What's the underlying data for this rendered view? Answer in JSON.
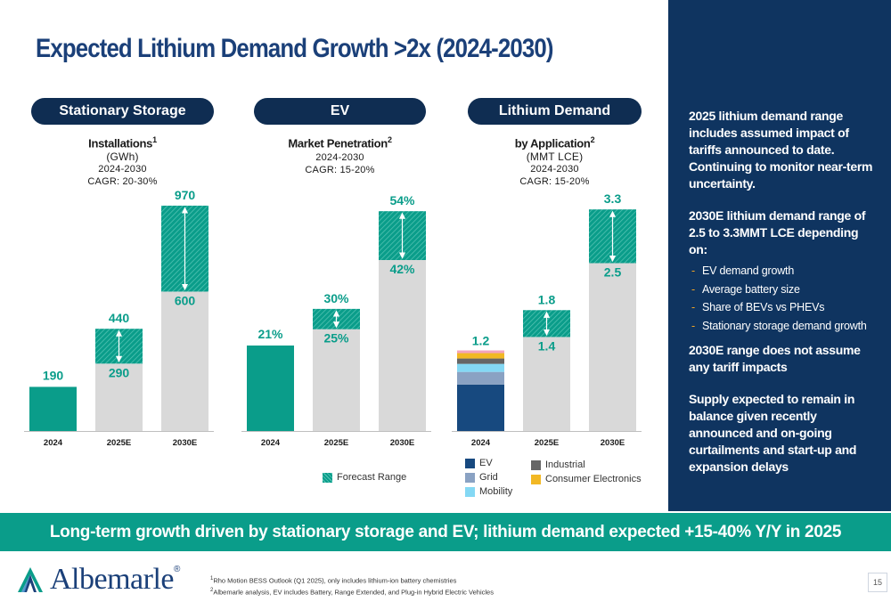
{
  "title": "Expected Lithium Demand Growth >2x (2024-2030)",
  "panels": [
    {
      "pill": "Stationary Storage",
      "title": "Installations",
      "sup": "1",
      "unit": "(GWh)",
      "cagr_line1": "2024-2030",
      "cagr_line2": "CAGR: 20-30%"
    },
    {
      "pill": "EV",
      "title": "Market Penetration",
      "sup": "2",
      "unit": "",
      "cagr_line1": "2024-2030",
      "cagr_line2": "CAGR: 15-20%"
    },
    {
      "pill": "Lithium Demand",
      "title": "by Application",
      "sup": "2",
      "unit": "(MMT LCE)",
      "cagr_line1": "2024-2030",
      "cagr_line2": "CAGR: 15-20%"
    }
  ],
  "chart_data": [
    {
      "type": "bar",
      "title": "Installations (GWh)",
      "categories": [
        "2024",
        "2025E",
        "2030E"
      ],
      "base": [
        190,
        290,
        600
      ],
      "range_high": [
        null,
        440,
        970
      ],
      "labels_low": [
        "190",
        "290",
        "600"
      ],
      "labels_high": [
        "",
        "440",
        "970"
      ],
      "ylim": [
        0,
        1000
      ]
    },
    {
      "type": "bar",
      "title": "Market Penetration",
      "categories": [
        "2024",
        "2025E",
        "2030E"
      ],
      "base": [
        21,
        25,
        42
      ],
      "range_high": [
        null,
        30,
        54
      ],
      "labels_low": [
        "21%",
        "25%",
        "42%"
      ],
      "labels_high": [
        "",
        "30%",
        "54%"
      ],
      "ylim": [
        0,
        56
      ]
    },
    {
      "type": "bar",
      "title": "by Application (MMT LCE)",
      "categories": [
        "2024",
        "2025E",
        "2030E"
      ],
      "base": [
        1.2,
        1.4,
        2.5
      ],
      "range_high": [
        null,
        1.8,
        3.3
      ],
      "labels_low": [
        "1.2",
        "1.4",
        "2.5"
      ],
      "labels_high": [
        "",
        "1.8",
        "3.3"
      ],
      "ylim": [
        0,
        3.4
      ],
      "stack_2024": [
        {
          "name": "EV",
          "value": 0.69,
          "color": "#17497f"
        },
        {
          "name": "Grid",
          "value": 0.19,
          "color": "#8aa2c3"
        },
        {
          "name": "Mobility",
          "value": 0.12,
          "color": "#84d8f4"
        },
        {
          "name": "Industrial",
          "value": 0.08,
          "color": "#666666"
        },
        {
          "name": "Consumer Electronics",
          "value": 0.08,
          "color": "#f2b824"
        },
        {
          "name": "",
          "value": 0.04,
          "color": "#f3a3bd"
        }
      ]
    }
  ],
  "legend": {
    "forecast": "Forecast Range",
    "items": [
      {
        "label": "EV",
        "color": "#17497f"
      },
      {
        "label": "Grid",
        "color": "#8aa2c3"
      },
      {
        "label": "Mobility",
        "color": "#84d8f4"
      },
      {
        "label": "Industrial",
        "color": "#666666"
      },
      {
        "label": "Consumer Electronics",
        "color": "#f2b824"
      }
    ]
  },
  "sidebar": {
    "p1": "2025 lithium demand range includes assumed impact of tariffs announced to date. Continuing to monitor near-term uncertainty.",
    "p2": "2030E lithium demand range of 2.5 to 3.3MMT LCE depending on:",
    "bullets": [
      "EV demand growth",
      "Average battery size",
      "Share of BEVs vs PHEVs",
      "Stationary storage demand growth"
    ],
    "p3": "2030E range does not assume any tariff impacts",
    "p4": "Supply expected to remain in balance given recently announced and on-going curtailments and start-up and expansion delays"
  },
  "banner": "Long-term growth driven by stationary storage and EV; lithium demand expected +15-40% Y/Y in 2025",
  "logo": {
    "text": "Albemarle",
    "reg": "®"
  },
  "footnotes": {
    "f1_sup": "1",
    "f1": "Rho Motion BESS Outlook (Q1 2025), only includes lithium-ion battery chemistries",
    "f2_sup": "2",
    "f2": "Albemarle analysis, EV includes Battery, Range Extended, and Plug-in Hybrid Electric Vehicles"
  },
  "page_number": "15",
  "colors": {
    "teal": "#0a9d8a",
    "navy": "#0f3460",
    "grey_bar": "#d9d9d9",
    "title": "#1b4079"
  }
}
